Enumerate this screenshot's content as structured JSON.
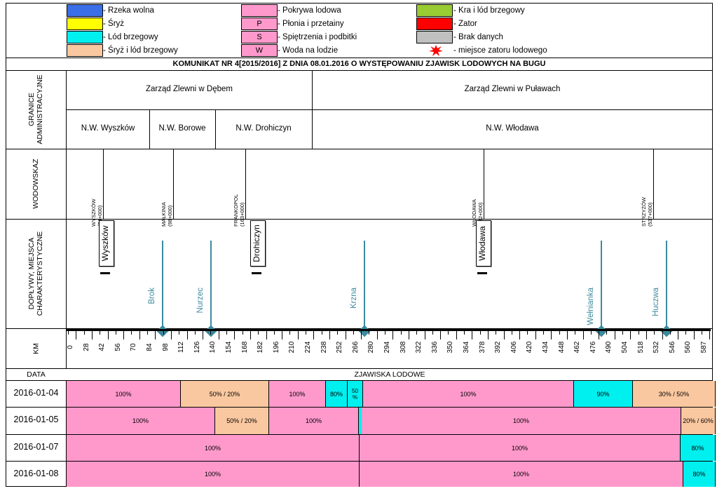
{
  "legend": [
    {
      "swatch": "",
      "color": "#3a6fe8",
      "label": "- Rzeka wolna"
    },
    {
      "swatch": "",
      "color": "#ffff00",
      "label": "- Śryż"
    },
    {
      "swatch": "",
      "color": "#00f0f0",
      "label": "- Lód brzegowy"
    },
    {
      "swatch": "",
      "color": "#fac8a0",
      "label": "- Śryż i lód brzegowy"
    },
    {
      "swatch": "",
      "color": "#ff99cc",
      "label": "- Pokrywa lodowa"
    },
    {
      "swatch": "P",
      "color": "#ff99cc",
      "label": "- Płonia i przetainy"
    },
    {
      "swatch": "S",
      "color": "#ff99cc",
      "label": "- Spiętrzenia i podbitki"
    },
    {
      "swatch": "W",
      "color": "#ff99cc",
      "label": "- Woda na lodzie"
    },
    {
      "swatch": "",
      "color": "#99cc33",
      "label": "- Kra i lód brzegowy"
    },
    {
      "swatch": "",
      "color": "#ff0000",
      "label": "- Zator"
    },
    {
      "swatch": "",
      "color": "#c0c0c0",
      "label": "- Brak danych"
    },
    {
      "swatch": "",
      "color": "#ff0000",
      "label": "- miejsce zatoru lodowego",
      "icon": "burst-icon"
    }
  ],
  "title": "KOMUNIKAT NR 4[2015/2016] Z DNIA 08.01.2016 O WYSTĘPOWANIU ZJAWISK LODOWYCH NA BUGU",
  "rows": {
    "admin": "GRANICE ADMINISTRACYJNE",
    "gauges": "WODOWSKAZ",
    "tributaries": "DOPŁYWY, MIEJSCA CHARAKTERYSTYCZNE",
    "km": "KM",
    "date": "DATA",
    "phenomena": "ZJAWISKA LODOWE"
  },
  "zarzady": [
    {
      "name": "Zarząd Zlewni w Dębem",
      "from": 0,
      "to": 280
    },
    {
      "name": "Zarząd Zlewni w Puławach",
      "from": 280,
      "to": 587
    }
  ],
  "nw": [
    {
      "name": "N.W. Wyszków",
      "from": 0,
      "to": 77
    },
    {
      "name": "N.W. Borowe",
      "from": 77,
      "to": 137
    },
    {
      "name": "N.W. Drohiczyn",
      "from": 137,
      "to": 220
    },
    {
      "name": "N.W. Włodawa",
      "from": 220,
      "to": 587
    }
  ],
  "gauges": [
    {
      "label": "WYSZKÓW\n(34+000)",
      "km": 34
    },
    {
      "label": "MAŁKINIA\n(98+000)",
      "km": 98
    },
    {
      "label": "FRANKOPOL\n(163+000)",
      "km": 163
    },
    {
      "label": "WŁODAWA\n(382+000)",
      "km": 382
    },
    {
      "label": "STRZYŻÓW\n(537+000)",
      "km": 537
    }
  ],
  "towns": [
    {
      "name": "Wyszków",
      "km": 34
    },
    {
      "name": "Drohiczyn",
      "km": 174
    },
    {
      "name": "Włodawa",
      "km": 380
    }
  ],
  "tributaries": [
    {
      "name": "Brok",
      "km": 87
    },
    {
      "name": "Nurzec",
      "km": 131
    },
    {
      "name": "Krzna",
      "km": 272
    },
    {
      "name": "Wełnianka",
      "km": 489
    },
    {
      "name": "Huczwa",
      "km": 548
    }
  ],
  "km_ticks": [
    "0",
    "28",
    "42",
    "56",
    "70",
    "84",
    "98",
    "112",
    "126",
    "140",
    "154",
    "168",
    "182",
    "196",
    "210",
    "224",
    "238",
    "252",
    "266",
    "280",
    "294",
    "308",
    "322",
    "336",
    "350",
    "364",
    "378",
    "392",
    "406",
    "420",
    "434",
    "448",
    "462",
    "476",
    "490",
    "504",
    "518",
    "532",
    "546",
    "560",
    "587"
  ],
  "days": [
    {
      "date": "2016-01-04",
      "segments": [
        {
          "color": "#ff99cc",
          "w": 163,
          "label": "100%"
        },
        {
          "color": "#fac8a0",
          "w": 126,
          "label": "50% / 20%"
        },
        {
          "color": "#ff99cc",
          "w": 81,
          "label": "100%"
        },
        {
          "color": "#00f0f0",
          "w": 31,
          "label": "80%"
        },
        {
          "color": "#00f0f0",
          "w": 22,
          "label": "50 %"
        },
        {
          "color": "#ff99cc",
          "w": 301,
          "label": "100%"
        },
        {
          "color": "#00f0f0",
          "w": 84,
          "label": "90%"
        },
        {
          "color": "#fac8a0",
          "w": 118,
          "label": "30% / 50%"
        }
      ]
    },
    {
      "date": "2016-01-05",
      "segments": [
        {
          "color": "#ff99cc",
          "w": 212,
          "label": "100%"
        },
        {
          "color": "#fac8a0",
          "w": 77,
          "label": "50% / 20%"
        },
        {
          "color": "#ff99cc",
          "w": 128,
          "label": "100%"
        },
        {
          "color": "#00f0f0",
          "w": 4,
          "label": ""
        },
        {
          "color": "#ff99cc",
          "w": 456,
          "label": "100%"
        },
        {
          "color": "#fac8a0",
          "w": 49,
          "label": "20% / 60%"
        }
      ]
    },
    {
      "date": "2016-01-07",
      "segments": [
        {
          "color": "#ff99cc",
          "w": 418,
          "label": "100%"
        },
        {
          "color": "#ff99cc",
          "w": 458,
          "label": "100%"
        },
        {
          "color": "#00f0f0",
          "w": 50,
          "label": "80%"
        }
      ]
    },
    {
      "date": "2016-01-08",
      "segments": [
        {
          "color": "#ff99cc",
          "w": 418,
          "label": "100%"
        },
        {
          "color": "#ff99cc",
          "w": 462,
          "label": "100%"
        },
        {
          "color": "#00f0f0",
          "w": 46,
          "label": "80%"
        }
      ]
    }
  ]
}
